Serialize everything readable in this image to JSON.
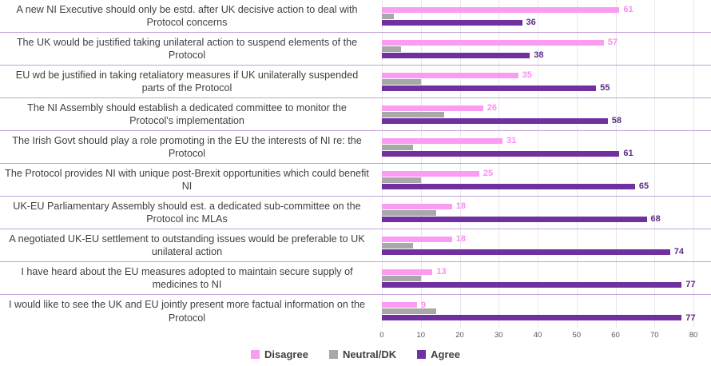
{
  "chart_data": {
    "type": "bar",
    "orientation": "horizontal",
    "title": "",
    "xlabel": "",
    "ylabel": "",
    "xlim": [
      0,
      80
    ],
    "ticks": [
      0,
      10,
      20,
      30,
      40,
      50,
      60,
      70,
      80
    ],
    "grid": true,
    "legend_position": "bottom",
    "separator_color": "#c2a3d8",
    "gridline_color": "#e9e6ec",
    "categories": [
      "A new NI Executive should only be estd. after UK decisive action to deal with Protocol concerns",
      "The UK would be justified taking unilateral action to suspend elements of the Protocol",
      "EU wd be justified in taking retaliatory measures if UK unilaterally suspended parts of the Protocol",
      "The NI Assembly should establish a dedicated committee to monitor the Protocol's implementation",
      "The Irish Govt should play a role promoting in the EU the interests of NI re: the Protocol",
      "The Protocol provides NI with unique post-Brexit opportunities which could benefit NI",
      "UK-EU Parliamentary Assembly should est. a dedicated sub-committee on the Protocol inc MLAs",
      "A negotiated UK-EU settlement to outstanding issues would be preferable to UK unilateral action",
      "I have heard about the EU measures adopted to maintain secure supply of medicines to NI",
      "I would like to see the UK and EU jointly present more factual information on the Protocol"
    ],
    "series": [
      {
        "name": "Disagree",
        "color": "#fb9cf3",
        "label_color": "#f98ef0",
        "show_value_labels": true,
        "values": [
          61,
          57,
          35,
          26,
          31,
          25,
          18,
          18,
          13,
          9
        ]
      },
      {
        "name": "Neutral/DK",
        "color": "#a8a8a8",
        "label_color": "#a8a8a8",
        "show_value_labels": false,
        "values": [
          3,
          5,
          10,
          16,
          8,
          10,
          14,
          8,
          10,
          14
        ]
      },
      {
        "name": "Agree",
        "color": "#7030a0",
        "label_color": "#5c2d87",
        "show_value_labels": true,
        "values": [
          36,
          38,
          55,
          58,
          61,
          65,
          68,
          74,
          77,
          77
        ]
      }
    ]
  }
}
